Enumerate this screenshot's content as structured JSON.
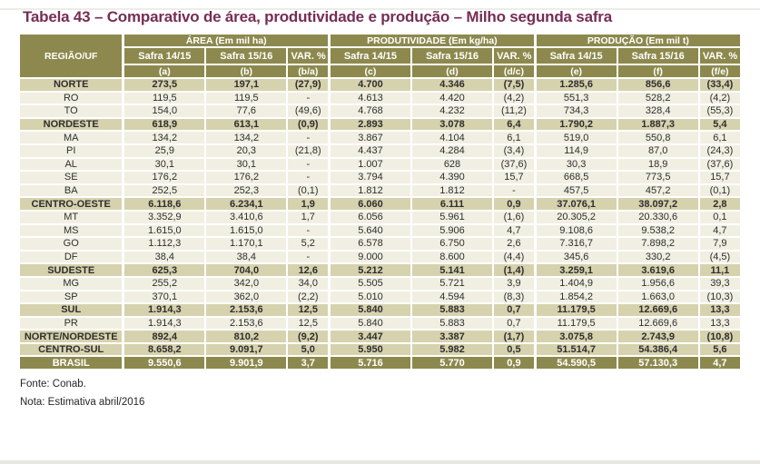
{
  "title": "Tabela 43 – Comparativo de área, produtividade e produção – Milho segunda safra",
  "colors": {
    "header_olive": "#8d894e",
    "region_row_beige": "#d7d2ae",
    "state_row_cream": "#f1efe2",
    "title_maroon": "#762d55",
    "cell_border_white": "#ffffff"
  },
  "table": {
    "region_header": "REGIÃO/UF",
    "groups": [
      {
        "label": "ÁREA (Em mil ha)"
      },
      {
        "label": "PRODUTIVIDADE (Em kg/ha)"
      },
      {
        "label": "PRODUÇÃO (Em mil t)"
      }
    ],
    "subheaders": [
      "Safra 14/15",
      "Safra 15/16",
      "VAR. %"
    ],
    "letters": [
      "(a)",
      "(b)",
      "(b/a)",
      "(c)",
      "(d)",
      "(d/c)",
      "(e)",
      "(f)",
      "(f/e)"
    ],
    "rows": [
      {
        "name": "NORTE",
        "type": "region",
        "values": [
          "273,5",
          "197,1",
          "(27,9)",
          "4.700",
          "4.346",
          "(7,5)",
          "1.285,6",
          "856,6",
          "(33,4)"
        ]
      },
      {
        "name": "RO",
        "type": "state",
        "values": [
          "119,5",
          "119,5",
          "-",
          "4.613",
          "4.420",
          "(4,2)",
          "551,3",
          "528,2",
          "(4,2)"
        ]
      },
      {
        "name": "TO",
        "type": "state",
        "values": [
          "154,0",
          "77,6",
          "(49,6)",
          "4.768",
          "4.232",
          "(11,2)",
          "734,3",
          "328,4",
          "(55,3)"
        ]
      },
      {
        "name": "NORDESTE",
        "type": "region",
        "values": [
          "618,9",
          "613,1",
          "(0,9)",
          "2.893",
          "3.078",
          "6,4",
          "1.790,2",
          "1.887,3",
          "5,4"
        ]
      },
      {
        "name": "MA",
        "type": "state",
        "values": [
          "134,2",
          "134,2",
          "-",
          "3.867",
          "4.104",
          "6,1",
          "519,0",
          "550,8",
          "6,1"
        ]
      },
      {
        "name": "PI",
        "type": "state",
        "values": [
          "25,9",
          "20,3",
          "(21,8)",
          "4.437",
          "4.284",
          "(3,4)",
          "114,9",
          "87,0",
          "(24,3)"
        ]
      },
      {
        "name": "AL",
        "type": "state",
        "values": [
          "30,1",
          "30,1",
          "-",
          "1.007",
          "628",
          "(37,6)",
          "30,3",
          "18,9",
          "(37,6)"
        ]
      },
      {
        "name": "SE",
        "type": "state",
        "values": [
          "176,2",
          "176,2",
          "-",
          "3.794",
          "4.390",
          "15,7",
          "668,5",
          "773,5",
          "15,7"
        ]
      },
      {
        "name": "BA",
        "type": "state",
        "values": [
          "252,5",
          "252,3",
          "(0,1)",
          "1.812",
          "1.812",
          "-",
          "457,5",
          "457,2",
          "(0,1)"
        ]
      },
      {
        "name": "CENTRO-OESTE",
        "type": "region",
        "values": [
          "6.118,6",
          "6.234,1",
          "1,9",
          "6.060",
          "6.111",
          "0,9",
          "37.076,1",
          "38.097,2",
          "2,8"
        ]
      },
      {
        "name": "MT",
        "type": "state",
        "values": [
          "3.352,9",
          "3.410,6",
          "1,7",
          "6.056",
          "5.961",
          "(1,6)",
          "20.305,2",
          "20.330,6",
          "0,1"
        ]
      },
      {
        "name": "MS",
        "type": "state",
        "values": [
          "1.615,0",
          "1.615,0",
          "-",
          "5.640",
          "5.906",
          "4,7",
          "9.108,6",
          "9.538,2",
          "4,7"
        ]
      },
      {
        "name": "GO",
        "type": "state",
        "values": [
          "1.112,3",
          "1.170,1",
          "5,2",
          "6.578",
          "6.750",
          "2,6",
          "7.316,7",
          "7.898,2",
          "7,9"
        ]
      },
      {
        "name": "DF",
        "type": "state",
        "values": [
          "38,4",
          "38,4",
          "-",
          "9.000",
          "8.600",
          "(4,4)",
          "345,6",
          "330,2",
          "(4,5)"
        ]
      },
      {
        "name": "SUDESTE",
        "type": "region",
        "values": [
          "625,3",
          "704,0",
          "12,6",
          "5.212",
          "5.141",
          "(1,4)",
          "3.259,1",
          "3.619,6",
          "11,1"
        ]
      },
      {
        "name": "MG",
        "type": "state",
        "values": [
          "255,2",
          "342,0",
          "34,0",
          "5.505",
          "5.721",
          "3,9",
          "1.404,9",
          "1.956,6",
          "39,3"
        ]
      },
      {
        "name": "SP",
        "type": "state",
        "values": [
          "370,1",
          "362,0",
          "(2,2)",
          "5.010",
          "4.594",
          "(8,3)",
          "1.854,2",
          "1.663,0",
          "(10,3)"
        ]
      },
      {
        "name": "SUL",
        "type": "region",
        "values": [
          "1.914,3",
          "2.153,6",
          "12,5",
          "5.840",
          "5.883",
          "0,7",
          "11.179,5",
          "12.669,6",
          "13,3"
        ]
      },
      {
        "name": "PR",
        "type": "state",
        "values": [
          "1.914,3",
          "2.153,6",
          "12,5",
          "5.840",
          "5.883",
          "0,7",
          "11.179,5",
          "12.669,6",
          "13,3"
        ]
      },
      {
        "name": "NORTE/NORDESTE",
        "type": "region",
        "values": [
          "892,4",
          "810,2",
          "(9,2)",
          "3.447",
          "3.387",
          "(1,7)",
          "3.075,8",
          "2.743,9",
          "(10,8)"
        ]
      },
      {
        "name": "CENTRO-SUL",
        "type": "region",
        "values": [
          "8.658,2",
          "9.091,7",
          "5,0",
          "5.950",
          "5.982",
          "0,5",
          "51.514,7",
          "54.386,4",
          "5,6"
        ]
      },
      {
        "name": "BRASIL",
        "type": "total",
        "values": [
          "9.550,6",
          "9.901,9",
          "3,7",
          "5.716",
          "5.770",
          "0,9",
          "54.590,5",
          "57.130,3",
          "4,7"
        ]
      }
    ]
  },
  "footer": {
    "fonte": "Fonte: Conab.",
    "nota": "Nota: Estimativa  abril/2016"
  }
}
